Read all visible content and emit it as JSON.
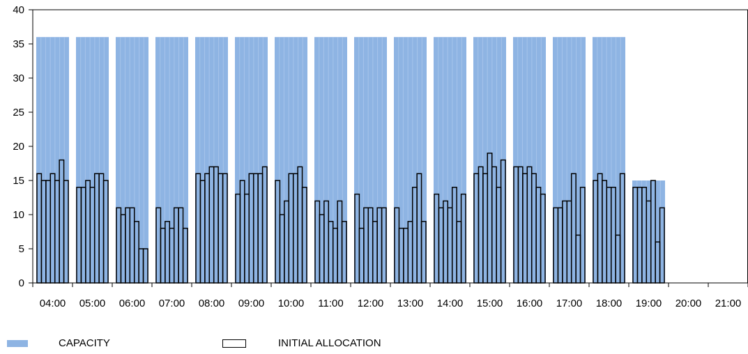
{
  "chart_data": {
    "type": "bar",
    "title": "",
    "xlabel": "",
    "ylabel": "",
    "ylim": [
      0,
      40
    ],
    "y_ticks": [
      "0",
      "5",
      "10",
      "15",
      "20",
      "25",
      "30",
      "35",
      "40"
    ],
    "categories": [
      "04:00",
      "05:00",
      "06:00",
      "07:00",
      "08:00",
      "09:00",
      "10:00",
      "11:00",
      "12:00",
      "13:00",
      "14:00",
      "15:00",
      "16:00",
      "17:00",
      "18:00",
      "19:00",
      "20:00",
      "21:00"
    ],
    "grid": false,
    "legend_position": "bottom",
    "series": [
      {
        "name": "CAPACITY",
        "color": "#8eb4e3",
        "values": [
          36,
          36,
          36,
          36,
          36,
          36,
          36,
          36,
          36,
          36,
          36,
          36,
          36,
          36,
          36,
          15,
          0,
          0
        ]
      },
      {
        "name": "INITIAL ALLOCATION",
        "color": "#ffffff",
        "outline": "#000000",
        "values_per_slot": [
          [
            16,
            15,
            15,
            16,
            15,
            18,
            15
          ],
          [
            14,
            14,
            15,
            14,
            16,
            16,
            15
          ],
          [
            11,
            10,
            11,
            11,
            9,
            5,
            5
          ],
          [
            11,
            8,
            9,
            8,
            11,
            11,
            8
          ],
          [
            16,
            15,
            16,
            17,
            17,
            16,
            16
          ],
          [
            13,
            15,
            13,
            16,
            16,
            16,
            17
          ],
          [
            15,
            10,
            12,
            16,
            16,
            17,
            14
          ],
          [
            12,
            10,
            12,
            9,
            8,
            12,
            9
          ],
          [
            13,
            8,
            11,
            11,
            9,
            11,
            11
          ],
          [
            11,
            8,
            8,
            9,
            14,
            16,
            9
          ],
          [
            13,
            11,
            12,
            11,
            14,
            9,
            13
          ],
          [
            16,
            17,
            16,
            19,
            17,
            14,
            18
          ],
          [
            17,
            17,
            16,
            17,
            16,
            14,
            13
          ],
          [
            11,
            11,
            12,
            12,
            16,
            7,
            14
          ],
          [
            15,
            16,
            15,
            14,
            14,
            7,
            16
          ],
          [
            14,
            14,
            14,
            12,
            15,
            6,
            11
          ],
          [],
          []
        ]
      }
    ]
  }
}
